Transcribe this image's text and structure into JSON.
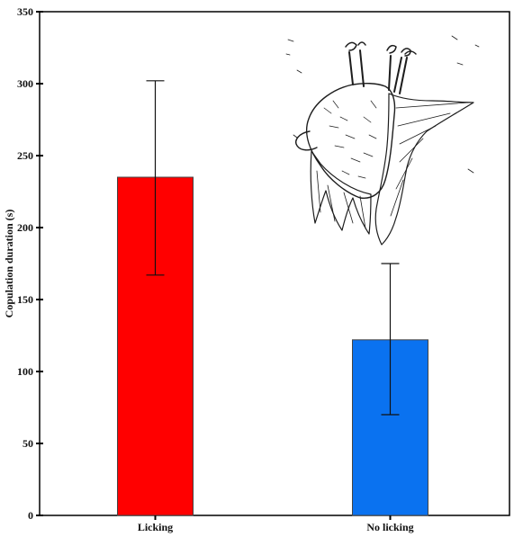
{
  "chart_data": {
    "type": "bar",
    "categories": [
      "Licking",
      "No licking"
    ],
    "values": [
      235,
      122
    ],
    "error_low": [
      167,
      70
    ],
    "error_high": [
      302,
      175
    ],
    "colors": [
      "#ff0000",
      "#0a72f0"
    ],
    "title": "",
    "xlabel": "",
    "ylabel": "Copulation duration (s)",
    "ylim": [
      0,
      350
    ],
    "yticks": [
      0,
      50,
      100,
      150,
      200,
      250,
      300,
      350
    ],
    "grid": false,
    "legend": "none"
  },
  "illustration": {
    "icon": "hanging-bat-sketch-icon"
  }
}
